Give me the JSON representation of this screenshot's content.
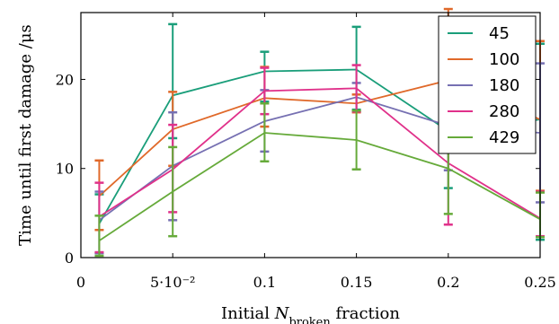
{
  "chart_data": {
    "type": "line",
    "xlabel": "Initial N_broken fraction",
    "ylabel": "Time until first damage /μs",
    "x": [
      0.01,
      0.05,
      0.1,
      0.15,
      0.2,
      0.25
    ],
    "xlim": [
      0,
      0.25
    ],
    "ylim": [
      0,
      27.5
    ],
    "xticks": [
      0,
      0.05,
      0.1,
      0.15,
      0.2,
      0.25
    ],
    "xtick_labels": [
      "0",
      "5·10⁻²",
      "0.1",
      "0.15",
      "0.2",
      "0.25"
    ],
    "yticks": [
      0,
      10,
      20
    ],
    "ytick_labels": [
      "0",
      "10",
      "20"
    ],
    "grid": false,
    "legend_position": "top-right",
    "series": [
      {
        "name": "45",
        "color": "#1a9e7a",
        "values": [
          3.8,
          18.2,
          20.9,
          21.1,
          14.2,
          15.5
        ],
        "err_low": [
          3.3,
          4.8,
          3.4,
          4.5,
          6.4,
          13.5
        ],
        "err_high": [
          3.3,
          8.0,
          2.2,
          4.8,
          6.4,
          8.5
        ]
      },
      {
        "name": "100",
        "color": "#e0692a",
        "values": [
          6.9,
          14.4,
          17.9,
          17.3,
          19.9,
          15.5
        ],
        "err_low": [
          3.8,
          4.1,
          3.2,
          1.0,
          8.0,
          8.0
        ],
        "err_high": [
          4.0,
          4.2,
          3.5,
          1.0,
          8.0,
          8.8
        ]
      },
      {
        "name": "180",
        "color": "#7670b2",
        "values": [
          4.2,
          10.3,
          15.3,
          18.0,
          14.8,
          14.0
        ],
        "err_low": [
          3.7,
          6.1,
          3.4,
          1.6,
          5.0,
          7.8
        ],
        "err_high": [
          3.2,
          6.0,
          3.5,
          1.6,
          5.0,
          7.8
        ]
      },
      {
        "name": "280",
        "color": "#e0318a",
        "values": [
          4.6,
          9.9,
          18.7,
          19.0,
          10.6,
          4.4
        ],
        "err_low": [
          4.0,
          4.8,
          2.6,
          2.6,
          6.9,
          2.0
        ],
        "err_high": [
          3.8,
          5.0,
          2.6,
          2.6,
          6.6,
          3.0
        ]
      },
      {
        "name": "429",
        "color": "#66aa3a",
        "values": [
          1.9,
          7.4,
          14.0,
          13.2,
          10.0,
          4.3
        ],
        "err_low": [
          1.7,
          5.0,
          3.2,
          3.3,
          5.1,
          2.0
        ],
        "err_high": [
          2.8,
          5.0,
          3.3,
          3.3,
          5.1,
          3.0
        ]
      }
    ]
  }
}
